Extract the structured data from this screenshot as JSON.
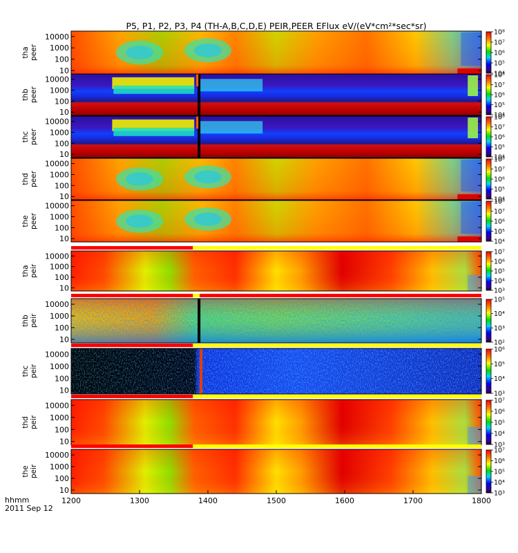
{
  "figure": {
    "title": "P5, P1, P2, P3, P4 (TH-A,B,C,D,E) PEIR,PEER EFlux eV/(eV*cm²*sec*sr)",
    "x_axis_label_line1": "hhmm",
    "x_axis_label_line2": "2011 Sep 12"
  },
  "chart_data": {
    "type": "heatmap",
    "title": "P5, P1, P2, P3, P4 (TH-A,B,C,D,E) PEIR,PEER EFlux eV/(eV*cm²*sec*sr)",
    "x": {
      "range": [
        1200,
        1800
      ],
      "ticks": [
        1200,
        1300,
        1400,
        1500,
        1600,
        1700,
        1800
      ],
      "tick_labels": [
        "1200",
        "1300",
        "1400",
        "1500",
        "1600",
        "1700",
        "1800"
      ],
      "label": "hhmm",
      "date": "2011 Sep 12"
    },
    "panels": [
      {
        "probe": "tha",
        "instrument": "peer",
        "ylabel": [
          "tha",
          "peer"
        ],
        "yscale": "log",
        "ylim": [
          5,
          30000
        ],
        "yticks": [
          10,
          100,
          1000,
          10000
        ],
        "ytick_labels": [
          "10",
          "100",
          "1000",
          "10000"
        ],
        "colorbar": {
          "log_range": [
            4,
            8
          ],
          "ticks": [
            "10⁴",
            "10⁵",
            "10⁶",
            "10⁷",
            "10⁸"
          ]
        },
        "palette": "electron-warm",
        "has_mode_bar": false
      },
      {
        "probe": "thb",
        "instrument": "peer",
        "ylabel": [
          "thb",
          "peer"
        ],
        "yscale": "log",
        "ylim": [
          5,
          30000
        ],
        "yticks": [
          10,
          100,
          1000,
          10000
        ],
        "ytick_labels": [
          "10",
          "100",
          "1000",
          "10000"
        ],
        "colorbar": {
          "log_range": [
            4,
            8
          ],
          "ticks": [
            "10⁴",
            "10⁵",
            "10⁶",
            "10⁷",
            "10⁸"
          ]
        },
        "palette": "electron-banded",
        "has_mode_bar": false
      },
      {
        "probe": "thc",
        "instrument": "peer",
        "ylabel": [
          "thc",
          "peer"
        ],
        "yscale": "log",
        "ylim": [
          5,
          30000
        ],
        "yticks": [
          10,
          100,
          1000,
          10000
        ],
        "ytick_labels": [
          "10",
          "100",
          "1000",
          "10000"
        ],
        "colorbar": {
          "log_range": [
            4,
            8
          ],
          "ticks": [
            "10⁴",
            "10⁵",
            "10⁶",
            "10⁷",
            "10⁸"
          ]
        },
        "palette": "electron-banded",
        "has_mode_bar": false
      },
      {
        "probe": "thd",
        "instrument": "peer",
        "ylabel": [
          "thd",
          "peer"
        ],
        "yscale": "log",
        "ylim": [
          5,
          30000
        ],
        "yticks": [
          10,
          100,
          1000,
          10000
        ],
        "ytick_labels": [
          "10",
          "100",
          "1000",
          "10000"
        ],
        "colorbar": {
          "log_range": [
            4,
            8
          ],
          "ticks": [
            "10⁴",
            "10⁵",
            "10⁶",
            "10⁷",
            "10⁸"
          ]
        },
        "palette": "electron-warm",
        "has_mode_bar": false
      },
      {
        "probe": "the",
        "instrument": "peer",
        "ylabel": [
          "the",
          "peer"
        ],
        "yscale": "log",
        "ylim": [
          5,
          30000
        ],
        "yticks": [
          10,
          100,
          1000,
          10000
        ],
        "ytick_labels": [
          "10",
          "100",
          "1000",
          "10000"
        ],
        "colorbar": {
          "log_range": [
            4,
            8
          ],
          "ticks": [
            "10⁴",
            "10⁵",
            "10⁶",
            "10⁷",
            "10⁸"
          ]
        },
        "palette": "electron-warm",
        "has_mode_bar": false
      },
      {
        "probe": "tha",
        "instrument": "peir",
        "ylabel": [
          "tha",
          "peir"
        ],
        "yscale": "log",
        "ylim": [
          5,
          30000
        ],
        "yticks": [
          10,
          100,
          1000,
          10000
        ],
        "ytick_labels": [
          "10",
          "100",
          "1000",
          "10000"
        ],
        "colorbar": {
          "log_range": [
            3,
            7
          ],
          "ticks": [
            "10³",
            "10⁴",
            "10⁵",
            "10⁶",
            "10⁷"
          ]
        },
        "palette": "ion-warm",
        "has_mode_bar": true
      },
      {
        "probe": "thb",
        "instrument": "peir",
        "ylabel": [
          "thb",
          "peir"
        ],
        "yscale": "log",
        "ylim": [
          5,
          30000
        ],
        "yticks": [
          10,
          100,
          1000,
          10000
        ],
        "ytick_labels": [
          "10",
          "100",
          "1000",
          "10000"
        ],
        "colorbar": {
          "log_range": [
            2,
            5
          ],
          "ticks": [
            "10²",
            "10³",
            "10⁴",
            "10⁵"
          ]
        },
        "palette": "ion-noisy-green",
        "has_mode_bar": true
      },
      {
        "probe": "thc",
        "instrument": "peir",
        "ylabel": [
          "thc",
          "peir"
        ],
        "yscale": "log",
        "ylim": [
          5,
          30000
        ],
        "yticks": [
          10,
          100,
          1000,
          10000
        ],
        "ytick_labels": [
          "10",
          "100",
          "1000",
          "10000"
        ],
        "colorbar": {
          "log_range": [
            3,
            6
          ],
          "ticks": [
            "10³",
            "10⁴",
            "10⁵",
            "10⁶"
          ]
        },
        "palette": "ion-noisy-blue",
        "has_mode_bar": true
      },
      {
        "probe": "thd",
        "instrument": "peir",
        "ylabel": [
          "thd",
          "peir"
        ],
        "yscale": "log",
        "ylim": [
          5,
          30000
        ],
        "yticks": [
          10,
          100,
          1000,
          10000
        ],
        "ytick_labels": [
          "10",
          "100",
          "1000",
          "10000"
        ],
        "colorbar": {
          "log_range": [
            3,
            7
          ],
          "ticks": [
            "10³",
            "10⁴",
            "10⁵",
            "10⁶",
            "10⁷"
          ]
        },
        "palette": "ion-warm",
        "has_mode_bar": true
      },
      {
        "probe": "the",
        "instrument": "peir",
        "ylabel": [
          "the",
          "peir"
        ],
        "yscale": "log",
        "ylim": [
          5,
          30000
        ],
        "yticks": [
          10,
          100,
          1000,
          10000
        ],
        "ytick_labels": [
          "10",
          "100",
          "1000",
          "10000"
        ],
        "colorbar": {
          "log_range": [
            3,
            7
          ],
          "ticks": [
            "10³",
            "10⁴",
            "10⁵",
            "10⁶",
            "10⁷"
          ]
        },
        "palette": "ion-warm",
        "has_mode_bar": true
      }
    ],
    "colorscale": "rainbow (purple-blue-cyan-green-yellow-red)",
    "grid": false,
    "legend": "none"
  }
}
